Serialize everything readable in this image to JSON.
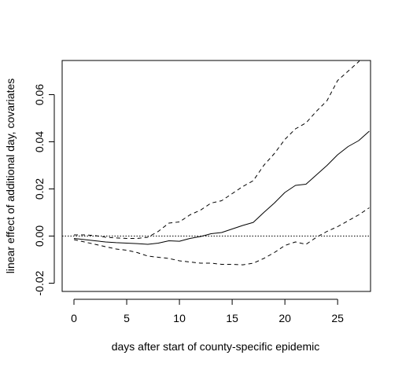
{
  "chart_data": {
    "type": "line",
    "title": "",
    "xlabel": "days after start of county-specific epidemic",
    "ylabel": "linear effect of additional day, covariates",
    "xlim": [
      -1.12,
      28.12
    ],
    "ylim": [
      -0.0235,
      0.0745
    ],
    "x_ticks": [
      0,
      5,
      10,
      15,
      20,
      25
    ],
    "y_ticks": [
      -0.02,
      0.0,
      0.02,
      0.04,
      0.06
    ],
    "x_tick_labels": [
      "0",
      "5",
      "10",
      "15",
      "20",
      "25"
    ],
    "y_tick_labels": [
      "-0.02",
      "0.00",
      "0.02",
      "0.04",
      "0.06"
    ],
    "grid": false,
    "legend": "none",
    "reference_line": {
      "y": 0.0,
      "style": "dotted"
    },
    "x": [
      0,
      1,
      2,
      3,
      4,
      5,
      6,
      7,
      8,
      9,
      10,
      11,
      12,
      13,
      14,
      15,
      16,
      17,
      18,
      19,
      20,
      21,
      22,
      23,
      24,
      25,
      26,
      27,
      28
    ],
    "series": [
      {
        "style": "solid",
        "values": [
          -0.001,
          -0.0015,
          -0.002,
          -0.0025,
          -0.0028,
          -0.003,
          -0.0032,
          -0.0035,
          -0.003,
          -0.002,
          -0.0022,
          -0.001,
          -0.0002,
          0.001,
          0.0015,
          0.003,
          0.0045,
          0.0058,
          0.01,
          0.014,
          0.0185,
          0.0215,
          0.022,
          0.026,
          0.03,
          0.0345,
          0.038,
          0.0405,
          0.0445
        ]
      },
      {
        "style": "dashed",
        "values": [
          0.0005,
          0.0005,
          0.0002,
          -0.0005,
          -0.0008,
          -0.001,
          -0.001,
          -0.0005,
          0.002,
          0.0055,
          0.006,
          0.009,
          0.011,
          0.014,
          0.015,
          0.018,
          0.021,
          0.0235,
          0.03,
          0.035,
          0.041,
          0.0455,
          0.048,
          0.053,
          0.0575,
          0.066,
          0.07,
          0.074,
          0.08
        ]
      },
      {
        "style": "dashed",
        "values": [
          -0.0015,
          -0.0025,
          -0.0035,
          -0.0045,
          -0.0055,
          -0.006,
          -0.007,
          -0.0085,
          -0.009,
          -0.0095,
          -0.0105,
          -0.011,
          -0.0115,
          -0.0115,
          -0.012,
          -0.012,
          -0.0122,
          -0.0115,
          -0.0095,
          -0.007,
          -0.004,
          -0.0025,
          -0.0035,
          -0.0005,
          0.002,
          0.004,
          0.0065,
          0.009,
          0.012
        ]
      }
    ]
  }
}
